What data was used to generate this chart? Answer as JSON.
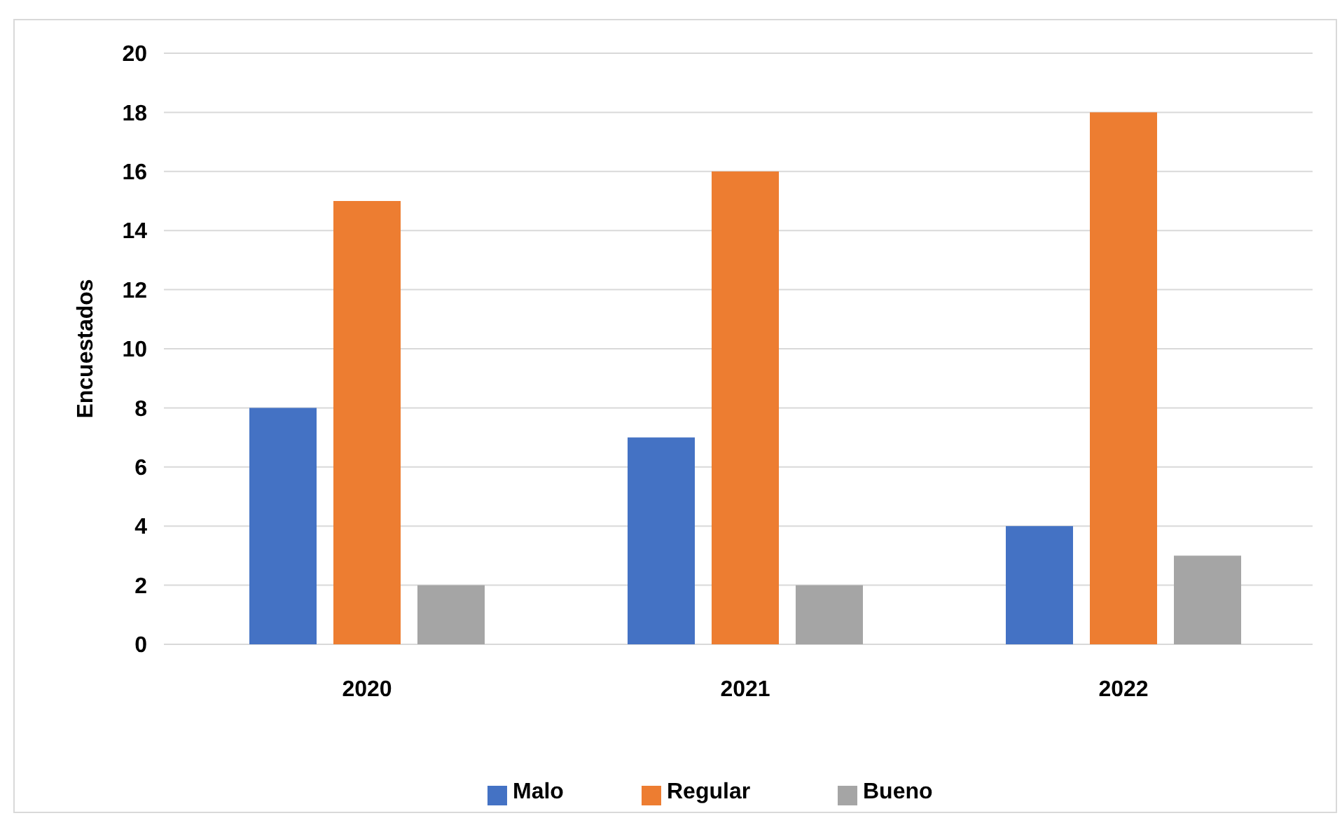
{
  "chart_data": {
    "type": "bar",
    "ylabel": "Encuestados",
    "categories": [
      "2020",
      "2021",
      "2022"
    ],
    "series": [
      {
        "name": "Malo",
        "color": "#4472c4",
        "values": [
          8,
          7,
          4
        ]
      },
      {
        "name": "Regular",
        "color": "#ed7d31",
        "values": [
          15,
          16,
          18
        ]
      },
      {
        "name": "Bueno",
        "color": "#a5a5a5",
        "values": [
          2,
          2,
          3
        ]
      }
    ],
    "ylim": [
      0,
      20
    ],
    "yticks": [
      0,
      2,
      4,
      6,
      8,
      10,
      12,
      14,
      16,
      18,
      20
    ],
    "grid": "y",
    "legend": "bottom"
  }
}
